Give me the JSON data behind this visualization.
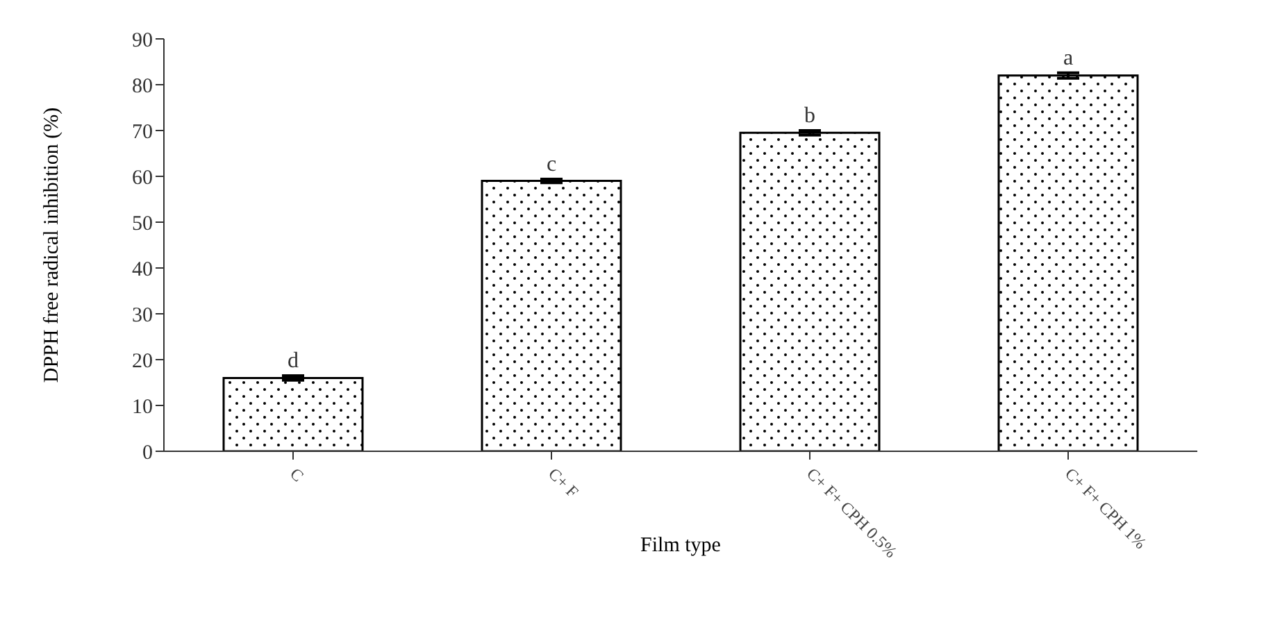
{
  "chart_data": {
    "type": "bar",
    "xlabel": "Film type",
    "ylabel": "DPPH free radical inhibition (%)",
    "categories": [
      "C",
      "C+ F",
      "C+ F+ CPH 0.5%",
      "C+ F+ CPH 1%"
    ],
    "values": [
      16,
      59,
      69.5,
      82
    ],
    "errors": [
      0.5,
      0.4,
      0.5,
      0.6
    ],
    "color": "#000000",
    "ylim": [
      0,
      90
    ],
    "yticks": [
      0,
      10,
      20,
      30,
      40,
      50,
      60,
      70,
      80,
      90
    ],
    "annotations": [
      {
        "text": "d",
        "x": "C",
        "y": 16
      },
      {
        "text": "c",
        "x": "C+ F",
        "y": 59
      },
      {
        "text": "b",
        "x": "C+ F+ CPH 0.5%",
        "y": 69.5
      },
      {
        "text": "a",
        "x": "C+ F+ CPH 1%",
        "y": 82
      }
    ]
  }
}
